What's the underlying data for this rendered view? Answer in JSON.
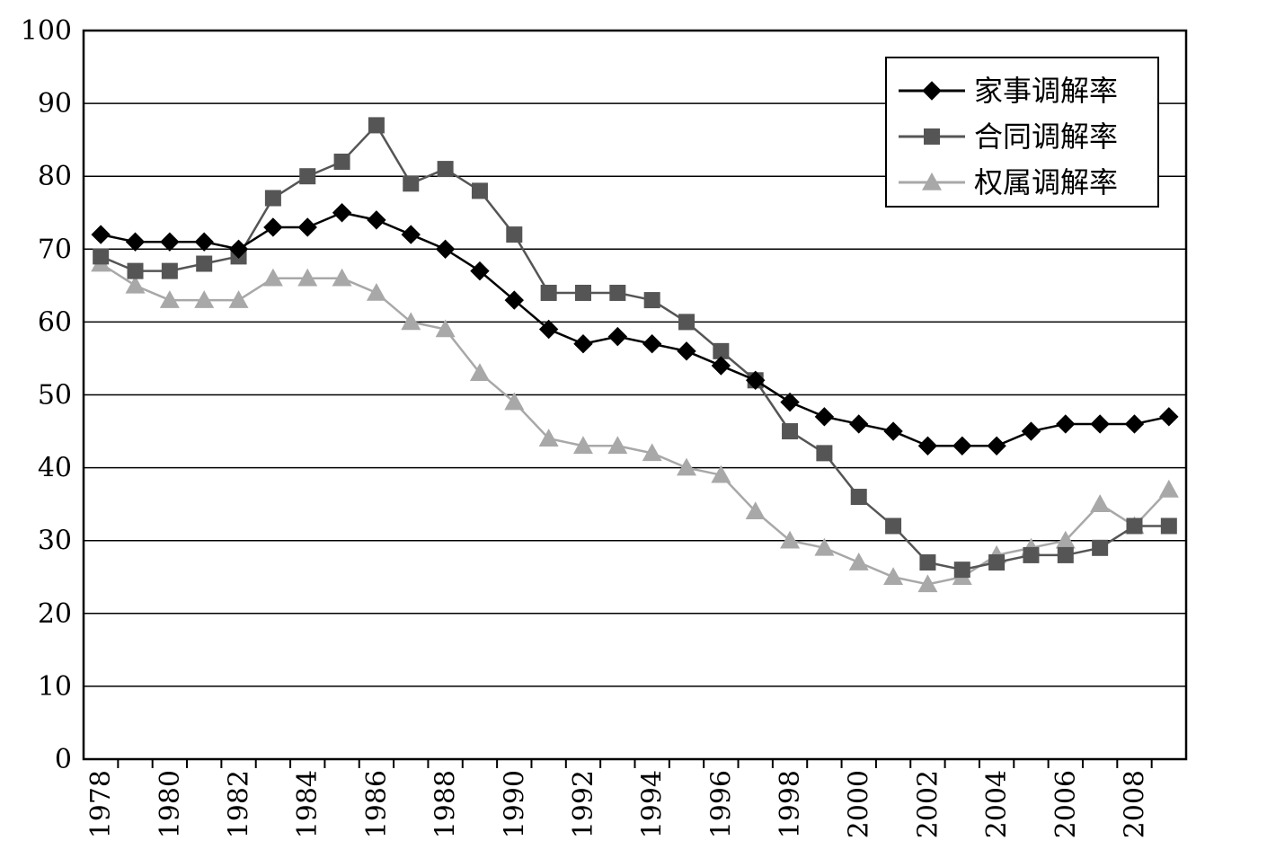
{
  "chart_data": {
    "type": "line",
    "title": "",
    "xlabel": "",
    "ylabel": "",
    "ylim": [
      0,
      100
    ],
    "yticks": [
      "0",
      "10",
      "20",
      "30",
      "40",
      "50",
      "60",
      "70",
      "80",
      "90",
      "100"
    ],
    "xtick_labels": [
      "1978",
      "1980",
      "1982",
      "1984",
      "1986",
      "1988",
      "1990",
      "1992",
      "1994",
      "1996",
      "1998",
      "2000",
      "2002",
      "2004",
      "2006",
      "2008"
    ],
    "x": [
      1978,
      1979,
      1980,
      1981,
      1982,
      1983,
      1984,
      1985,
      1986,
      1987,
      1988,
      1989,
      1990,
      1991,
      1992,
      1993,
      1994,
      1995,
      1996,
      1997,
      1998,
      1999,
      2000,
      2001,
      2002,
      2003,
      2004,
      2005,
      2006,
      2007,
      2008,
      2009
    ],
    "grid": true,
    "legend_position": "top-right",
    "series": [
      {
        "name": "家事调解率",
        "marker": "diamond",
        "color": "#000000",
        "values": [
          72,
          71,
          71,
          71,
          70,
          73,
          73,
          75,
          74,
          72,
          70,
          67,
          63,
          59,
          57,
          58,
          57,
          56,
          54,
          52,
          49,
          47,
          46,
          45,
          43,
          43,
          43,
          45,
          46,
          46,
          46,
          47
        ]
      },
      {
        "name": "合同调解率",
        "marker": "square",
        "color": "#555555",
        "values": [
          69,
          67,
          67,
          68,
          69,
          77,
          80,
          82,
          87,
          79,
          81,
          78,
          72,
          64,
          64,
          64,
          63,
          60,
          56,
          52,
          45,
          42,
          36,
          32,
          27,
          26,
          27,
          28,
          28,
          29,
          32,
          32
        ]
      },
      {
        "name": "权属调解率",
        "marker": "triangle",
        "color": "#a8a8a8",
        "values": [
          68,
          65,
          63,
          63,
          63,
          66,
          66,
          66,
          64,
          60,
          59,
          53,
          49,
          44,
          43,
          43,
          42,
          40,
          39,
          34,
          30,
          29,
          27,
          25,
          24,
          25,
          28,
          29,
          30,
          35,
          32,
          37
        ]
      }
    ]
  }
}
